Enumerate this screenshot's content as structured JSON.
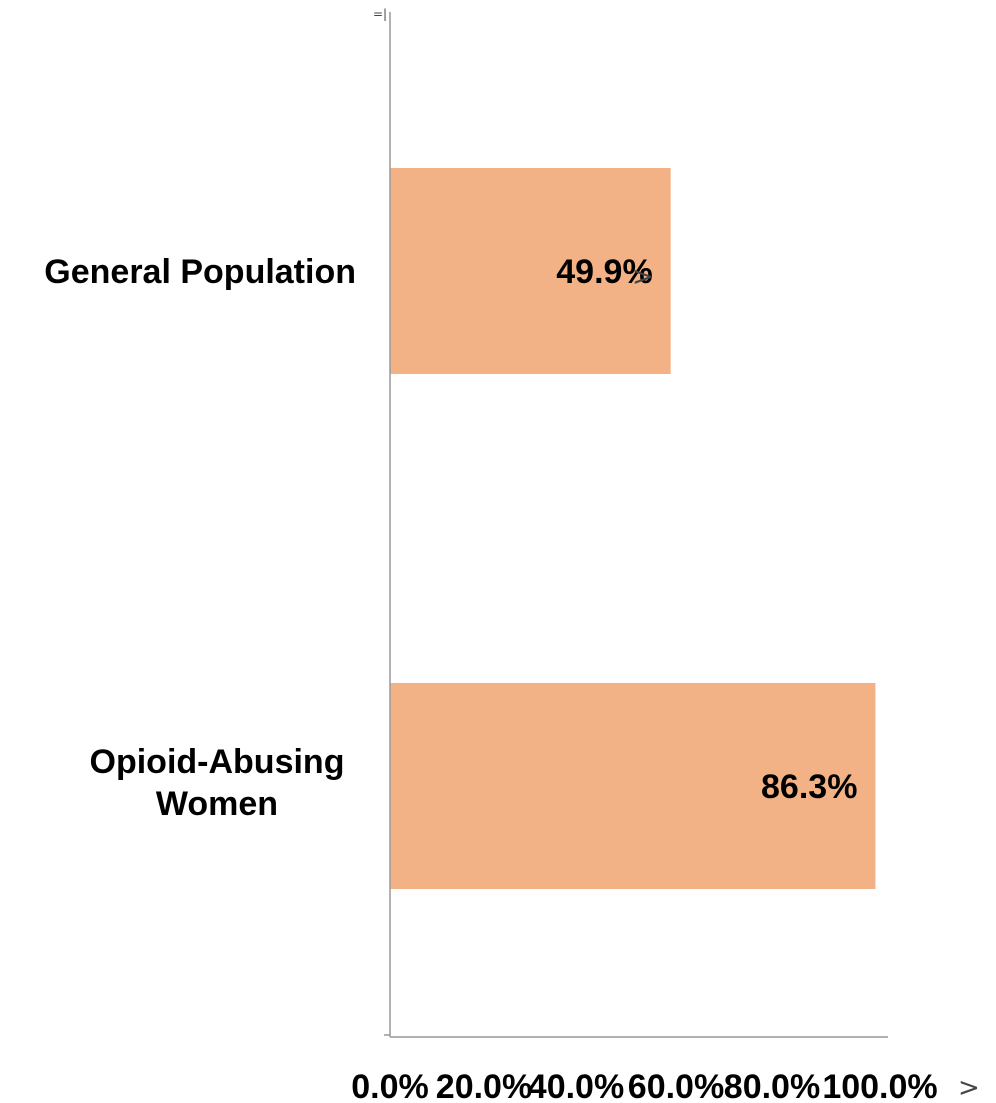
{
  "chart_data": {
    "type": "bar",
    "orientation": "horizontal",
    "categories": [
      "General Population",
      "Opioid-Abusing Women"
    ],
    "values": [
      49.9,
      86.3
    ],
    "data_labels": [
      "49.9%",
      "86.3%"
    ],
    "xlim": [
      0,
      100
    ],
    "xticks": [
      0,
      20,
      40,
      60,
      80,
      100
    ],
    "tick_labels": [
      "0.0%",
      "20.0%",
      "40.0%",
      "60.0%",
      "80.0%",
      "100.0%"
    ],
    "title": "",
    "xlabel": "",
    "ylabel": "",
    "grid": false,
    "legend": "none",
    "colors": {
      "bar": "#F3B286",
      "axis": "#999999"
    }
  }
}
